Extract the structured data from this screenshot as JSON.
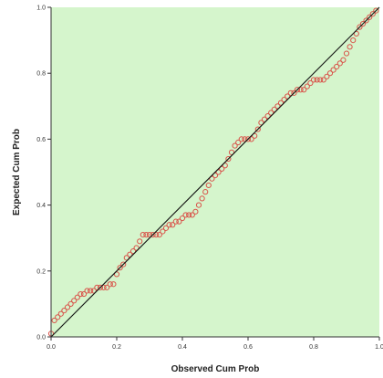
{
  "chart_data": {
    "type": "scatter",
    "title": "",
    "xlabel": "Observed Cum Prob",
    "ylabel": "Expected Cum Prob",
    "xlim": [
      0,
      1
    ],
    "ylim": [
      0,
      1
    ],
    "xticks": [
      "0.0",
      "0.2",
      "0.4",
      "0.6",
      "0.8",
      "1.0"
    ],
    "yticks": [
      "0.0",
      "0.2",
      "0.4",
      "0.6",
      "0.8",
      "1.0"
    ],
    "grid": false,
    "legend": "none",
    "reference_line": {
      "from": [
        0,
        0
      ],
      "to": [
        1,
        1
      ]
    },
    "series": [
      {
        "marker": "open-circle",
        "x": [
          0.0,
          0.01,
          0.02,
          0.03,
          0.04,
          0.05,
          0.06,
          0.07,
          0.08,
          0.09,
          0.1,
          0.11,
          0.12,
          0.13,
          0.14,
          0.15,
          0.16,
          0.17,
          0.18,
          0.19,
          0.2,
          0.21,
          0.22,
          0.23,
          0.24,
          0.25,
          0.26,
          0.27,
          0.28,
          0.29,
          0.3,
          0.31,
          0.32,
          0.33,
          0.34,
          0.35,
          0.36,
          0.37,
          0.38,
          0.39,
          0.4,
          0.41,
          0.42,
          0.43,
          0.44,
          0.45,
          0.46,
          0.47,
          0.48,
          0.49,
          0.5,
          0.51,
          0.52,
          0.53,
          0.54,
          0.55,
          0.56,
          0.57,
          0.58,
          0.59,
          0.6,
          0.61,
          0.62,
          0.63,
          0.64,
          0.65,
          0.66,
          0.67,
          0.68,
          0.69,
          0.7,
          0.71,
          0.72,
          0.73,
          0.74,
          0.75,
          0.76,
          0.77,
          0.78,
          0.79,
          0.8,
          0.81,
          0.82,
          0.83,
          0.84,
          0.85,
          0.86,
          0.87,
          0.88,
          0.89,
          0.9,
          0.91,
          0.92,
          0.93,
          0.94,
          0.95,
          0.96,
          0.97,
          0.98,
          0.99
        ],
        "y": [
          0.01,
          0.05,
          0.06,
          0.07,
          0.08,
          0.09,
          0.1,
          0.11,
          0.12,
          0.13,
          0.13,
          0.14,
          0.14,
          0.14,
          0.15,
          0.15,
          0.15,
          0.15,
          0.16,
          0.16,
          0.19,
          0.21,
          0.22,
          0.24,
          0.25,
          0.26,
          0.27,
          0.29,
          0.31,
          0.31,
          0.31,
          0.31,
          0.31,
          0.31,
          0.32,
          0.33,
          0.34,
          0.34,
          0.35,
          0.35,
          0.36,
          0.37,
          0.37,
          0.37,
          0.38,
          0.4,
          0.42,
          0.44,
          0.46,
          0.48,
          0.49,
          0.5,
          0.51,
          0.52,
          0.54,
          0.56,
          0.58,
          0.59,
          0.6,
          0.6,
          0.6,
          0.6,
          0.61,
          0.63,
          0.65,
          0.66,
          0.67,
          0.68,
          0.69,
          0.7,
          0.71,
          0.72,
          0.73,
          0.74,
          0.74,
          0.75,
          0.75,
          0.75,
          0.76,
          0.77,
          0.78,
          0.78,
          0.78,
          0.78,
          0.79,
          0.8,
          0.81,
          0.82,
          0.83,
          0.84,
          0.86,
          0.88,
          0.9,
          0.92,
          0.94,
          0.95,
          0.96,
          0.97,
          0.98,
          0.99
        ]
      }
    ]
  },
  "colors": {
    "plot_background": "#d5f5cc",
    "marker_stroke": "#d9534a",
    "reference_line": "#111111",
    "axis": "#333333"
  }
}
